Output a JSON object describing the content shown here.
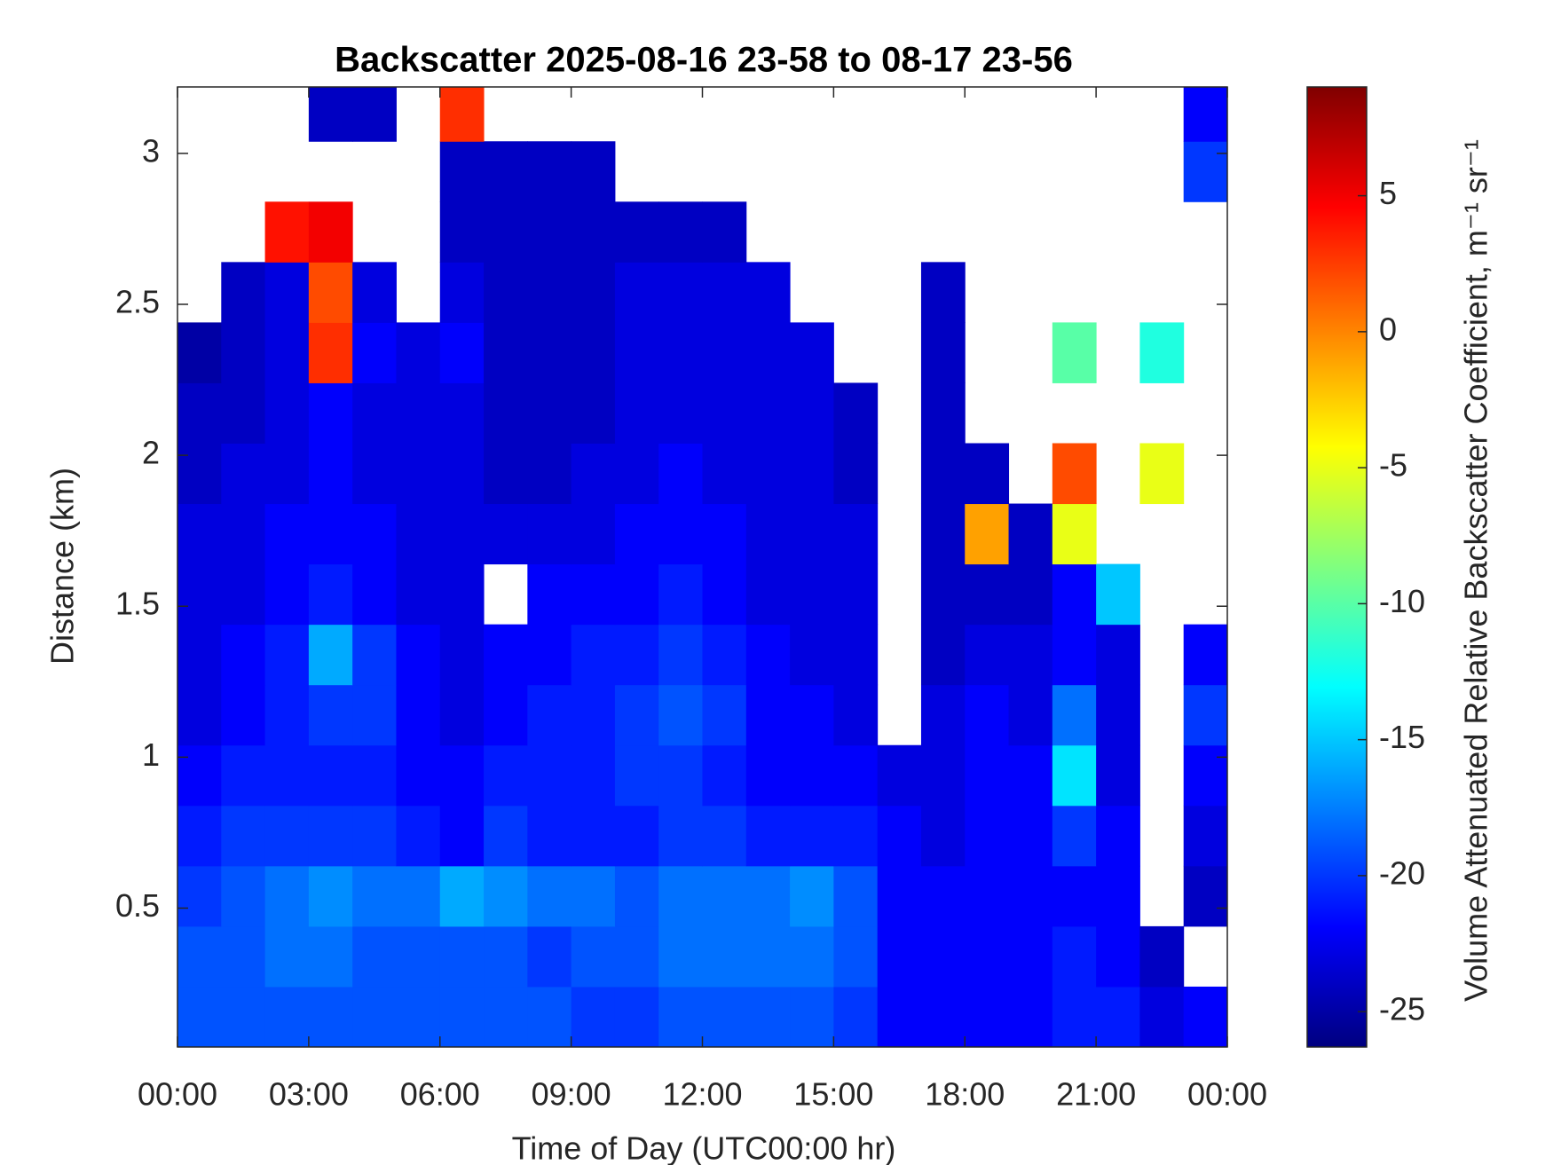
{
  "chart_data": {
    "type": "heatmap",
    "title": "Backscatter 2025-08-16 23-58 to 08-17 23-56",
    "x_label": "Time of Day (UTC00:00 hr)",
    "y_label": "Distance (km)",
    "colorbar_label": "Volume Attenuated Relative Backscatter Coefficient, m⁻¹ sr⁻¹",
    "colormap": "jet",
    "xlim": [
      0,
      24
    ],
    "ylim": [
      0.04,
      3.22
    ],
    "clim": [
      -26.3,
      9
    ],
    "xticks": [
      {
        "value": 0,
        "label": "00:00"
      },
      {
        "value": 3,
        "label": "03:00"
      },
      {
        "value": 6,
        "label": "06:00"
      },
      {
        "value": 9,
        "label": "09:00"
      },
      {
        "value": 12,
        "label": "12:00"
      },
      {
        "value": 15,
        "label": "15:00"
      },
      {
        "value": 18,
        "label": "18:00"
      },
      {
        "value": 21,
        "label": "21:00"
      },
      {
        "value": 24,
        "label": "00:00"
      }
    ],
    "yticks": [
      0.5,
      1,
      1.5,
      2,
      2.5,
      3
    ],
    "cticks": [
      -25,
      -20,
      -15,
      -10,
      -5,
      0,
      5
    ],
    "x": [
      0.5,
      1.5,
      2.5,
      3.5,
      4.5,
      5.5,
      6.5,
      7.5,
      8.5,
      9.5,
      10.5,
      11.5,
      12.5,
      13.5,
      14.5,
      15.5,
      16.5,
      17.5,
      18.5,
      19.5,
      20.5,
      21.5,
      22.5,
      23.5
    ],
    "y": [
      0.14,
      0.34,
      0.54,
      0.74,
      0.94,
      1.14,
      1.34,
      1.54,
      1.74,
      1.94,
      2.14,
      2.34,
      2.54,
      2.74,
      2.94,
      3.14
    ],
    "z": [
      [
        -19,
        -19,
        -19,
        -19,
        -19,
        -19,
        -19,
        -19,
        -19,
        -20,
        -20,
        -19,
        -19,
        -19,
        -19,
        -20,
        -22,
        -22,
        -22,
        -22,
        -21,
        -21,
        -23,
        -22
      ],
      [
        -19,
        -19,
        -18,
        -18,
        -19,
        -19,
        -19,
        -19,
        -20,
        -19,
        -19,
        -18,
        -18,
        -18,
        -18,
        -19,
        -22,
        -22,
        -22,
        -22,
        -21,
        -22,
        -24,
        null
      ],
      [
        -20,
        -19,
        -18,
        -17,
        -18,
        -18,
        -16,
        -17,
        -18,
        -18,
        -19,
        -18,
        -18,
        -18,
        -17,
        -19,
        -22,
        -22,
        -22,
        -22,
        -22,
        -22,
        null,
        -24
      ],
      [
        -21,
        -20,
        -20,
        -20,
        -20,
        -21,
        -22,
        -20,
        -21,
        -21,
        -21,
        -20,
        -20,
        -21,
        -21,
        -21,
        -22,
        -23,
        -22,
        -22,
        -20,
        -22,
        null,
        -23
      ],
      [
        -22,
        -21,
        -21,
        -21,
        -21,
        -22,
        -22,
        -21,
        -21,
        -21,
        -20,
        -20,
        -21,
        -22,
        -22,
        -22,
        -23,
        -23,
        -22,
        -22,
        -14,
        -23,
        null,
        -22
      ],
      [
        -23,
        -22,
        -21,
        -20,
        -20,
        -22,
        -23,
        -22,
        -21,
        -21,
        -20,
        -19,
        -20,
        -22,
        -22,
        -23,
        null,
        -23,
        -22,
        -23,
        -18,
        -23,
        null,
        -20
      ],
      [
        -23,
        -22,
        -21,
        -16,
        -20,
        -22,
        -23,
        -22,
        -22,
        -21,
        -21,
        -20,
        -21,
        -22,
        -23,
        -23,
        null,
        -24,
        -23,
        -23,
        -22,
        -23,
        null,
        -22
      ],
      [
        -23,
        -23,
        -22,
        -21,
        -22,
        -23,
        -23,
        null,
        -22,
        -22,
        -22,
        -21,
        -22,
        -23,
        -23,
        -23,
        null,
        -24,
        -24,
        -24,
        -22,
        -15,
        null,
        null
      ],
      [
        -23,
        -23,
        -22,
        -22,
        -22,
        -23,
        -23,
        -23,
        -23,
        -23,
        -22,
        -22,
        -22,
        -23,
        -23,
        -23,
        null,
        -24,
        -1,
        -24,
        -5,
        null,
        null,
        null
      ],
      [
        -24,
        -23,
        -23,
        -22,
        -23,
        -23,
        -23,
        -24,
        -24,
        -23,
        -23,
        -22,
        -23,
        -23,
        -23,
        -24,
        null,
        -24,
        -24,
        null,
        2,
        null,
        -5,
        null
      ],
      [
        -24,
        -24,
        -23,
        -22,
        -23,
        -23,
        -23,
        -24,
        -24,
        -24,
        -23,
        -23,
        -23,
        -23,
        -23,
        -24,
        null,
        -24,
        null,
        null,
        null,
        null,
        null,
        null
      ],
      [
        -25,
        -24,
        -23,
        3,
        -22,
        -23,
        -22,
        -24,
        -24,
        -24,
        -23,
        -23,
        -23,
        -23,
        -23,
        null,
        null,
        -24,
        null,
        null,
        -10,
        null,
        -12,
        null
      ],
      [
        null,
        -24,
        -23,
        2,
        -23,
        null,
        -23,
        -24,
        -24,
        -24,
        -23,
        -23,
        -23,
        -23,
        null,
        null,
        null,
        -24,
        null,
        null,
        null,
        null,
        null,
        null
      ],
      [
        null,
        null,
        4,
        5,
        null,
        null,
        -24,
        -24,
        -24,
        -24,
        -24,
        -24,
        -24,
        null,
        null,
        null,
        null,
        null,
        null,
        null,
        null,
        null,
        null,
        null
      ],
      [
        null,
        null,
        null,
        null,
        null,
        null,
        -24,
        -24,
        -24,
        -24,
        null,
        null,
        null,
        null,
        null,
        null,
        null,
        null,
        null,
        null,
        null,
        null,
        null,
        -20
      ],
      [
        null,
        null,
        null,
        -24,
        -24,
        null,
        3,
        null,
        null,
        null,
        null,
        null,
        null,
        null,
        null,
        null,
        null,
        null,
        null,
        null,
        null,
        null,
        null,
        -22
      ]
    ]
  }
}
